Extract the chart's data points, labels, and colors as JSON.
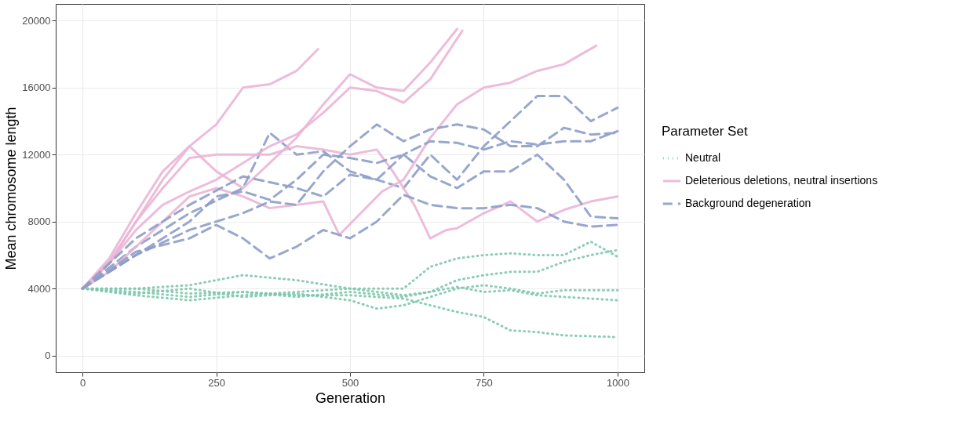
{
  "chart_data": {
    "type": "line",
    "xlabel": "Generation",
    "ylabel": "Mean chromosome length",
    "legend_title": "Parameter Set",
    "legend": "right",
    "grid": true,
    "marker": "none",
    "xlim": [
      -50,
      1050
    ],
    "xticks": [
      0,
      250,
      500,
      750,
      {
        "value": 1000,
        "label": "1000"
      }
    ],
    "ylim": [
      -1000,
      21000
    ],
    "yticks": [
      0,
      {
        "value": 4000,
        "label": "4000"
      },
      {
        "value": 8000,
        "label": "8000"
      },
      {
        "value": 12000,
        "label": "12000"
      },
      {
        "value": 16000,
        "label": "16000"
      },
      {
        "value": 20000,
        "label": "20000"
      }
    ],
    "series": [
      {
        "name": "Neutral",
        "color": "#80c8ad",
        "line_style": "dotted",
        "x": [
          0,
          100,
          200,
          300,
          400,
          500,
          600,
          700,
          750,
          800,
          850,
          900,
          1000
        ],
        "values": [
          4000,
          4000,
          3700,
          3800,
          3600,
          3600,
          3400,
          2600,
          2300,
          1500,
          1400,
          1200,
          1100
        ]
      },
      {
        "color": "#80c8ad",
        "line_style": "dotted",
        "x": [
          0,
          100,
          200,
          300,
          400,
          500,
          600,
          650,
          700,
          750,
          800,
          850,
          900,
          950,
          1000
        ],
        "values": [
          4000,
          3600,
          3300,
          3600,
          3800,
          4000,
          4000,
          5300,
          5800,
          6000,
          6100,
          6000,
          6000,
          6800,
          5900
        ]
      },
      {
        "color": "#80c8ad",
        "line_style": "dotted",
        "x": [
          0,
          100,
          200,
          300,
          400,
          500,
          600,
          650,
          700,
          750,
          800,
          850,
          900,
          950,
          1000
        ],
        "values": [
          4000,
          4000,
          4200,
          4800,
          4500,
          4000,
          3600,
          3800,
          4500,
          4800,
          5000,
          5000,
          5600,
          6000,
          6300
        ]
      },
      {
        "color": "#80c8ad",
        "line_style": "dotted",
        "x": [
          0,
          100,
          200,
          300,
          400,
          500,
          600,
          700,
          750,
          800,
          850,
          900,
          1000
        ],
        "values": [
          4000,
          3800,
          3500,
          3800,
          3500,
          3800,
          3500,
          4100,
          3800,
          3900,
          3600,
          3500,
          3300
        ]
      },
      {
        "color": "#80c8ad",
        "line_style": "dotted",
        "x": [
          0,
          100,
          200,
          300,
          400,
          500,
          550,
          600,
          700,
          750,
          800,
          850,
          900,
          1000
        ],
        "values": [
          4000,
          3700,
          4000,
          3500,
          3700,
          3300,
          2800,
          3000,
          4000,
          4200,
          4000,
          3700,
          3900,
          3900
        ]
      },
      {
        "name": "Deleterious deletions, neutral insertions",
        "color": "#ebb5d6",
        "line_style": "solid",
        "x": [
          0,
          50,
          100,
          150,
          200,
          250,
          300,
          350,
          400,
          440
        ],
        "values": [
          4000,
          5500,
          8000,
          10500,
          12500,
          13800,
          16000,
          16200,
          17000,
          18300
        ]
      },
      {
        "color": "#ebb5d6",
        "line_style": "solid",
        "x": [
          0,
          50,
          100,
          150,
          200,
          250,
          300,
          350,
          400,
          450,
          500,
          550,
          600,
          650,
          700
        ],
        "values": [
          4000,
          5800,
          8500,
          11000,
          12500,
          11000,
          10000,
          11500,
          13000,
          15000,
          16800,
          16000,
          15800,
          17500,
          19500
        ]
      },
      {
        "color": "#ebb5d6",
        "line_style": "solid",
        "x": [
          0,
          50,
          100,
          150,
          200,
          250,
          300,
          350,
          400,
          450,
          500,
          550,
          600,
          650,
          710
        ],
        "values": [
          4000,
          5500,
          7500,
          9000,
          9800,
          10500,
          11500,
          12500,
          13200,
          14500,
          16000,
          15800,
          15100,
          16500,
          19400
        ]
      },
      {
        "color": "#ebb5d6",
        "line_style": "solid",
        "x": [
          0,
          50,
          100,
          150,
          200,
          250,
          300,
          350,
          400,
          450,
          480,
          520,
          560,
          600,
          650,
          700,
          750,
          800,
          850,
          900,
          960
        ],
        "values": [
          4000,
          5000,
          6500,
          8000,
          9500,
          10000,
          9500,
          8800,
          9000,
          9200,
          7200,
          8500,
          9800,
          10500,
          13000,
          15000,
          16000,
          16300,
          17000,
          17400,
          18500
        ]
      },
      {
        "color": "#ebb5d6",
        "line_style": "solid",
        "x": [
          0,
          50,
          100,
          150,
          200,
          250,
          300,
          350,
          400,
          450,
          500,
          550,
          580,
          600,
          620,
          650,
          680,
          700,
          750,
          800,
          850,
          900,
          950,
          1000
        ],
        "values": [
          4000,
          5600,
          8000,
          10000,
          11800,
          12000,
          12000,
          12000,
          12500,
          12300,
          12000,
          12300,
          11000,
          10000,
          9000,
          7000,
          7500,
          7600,
          8500,
          9200,
          8000,
          8700,
          9200,
          9500
        ]
      },
      {
        "name": "Background degeneration",
        "color": "#8d9dc8",
        "line_style": "dashed",
        "x": [
          0,
          100,
          200,
          300,
          350,
          400,
          450,
          500,
          550,
          600,
          650,
          700,
          750,
          800,
          850,
          900,
          950,
          1000
        ],
        "values": [
          4000,
          6500,
          8500,
          10000,
          13300,
          12000,
          12200,
          11000,
          10500,
          10000,
          12000,
          10500,
          12500,
          14000,
          15500,
          15500,
          14000,
          14800
        ]
      },
      {
        "color": "#8d9dc8",
        "line_style": "dashed",
        "x": [
          0,
          100,
          200,
          300,
          350,
          400,
          450,
          500,
          550,
          600,
          650,
          700,
          750,
          800,
          850,
          900,
          950,
          1000
        ],
        "values": [
          4000,
          6000,
          7500,
          8500,
          9200,
          9000,
          11000,
          12500,
          13800,
          12800,
          13500,
          13800,
          13500,
          12500,
          12500,
          13600,
          13200,
          13300
        ]
      },
      {
        "color": "#8d9dc8",
        "line_style": "dashed",
        "x": [
          0,
          100,
          200,
          300,
          400,
          450,
          500,
          550,
          600,
          650,
          700,
          750,
          800,
          850,
          900,
          950,
          1000
        ],
        "values": [
          4000,
          7000,
          9000,
          10700,
          10000,
          9500,
          10800,
          10500,
          12000,
          12800,
          12700,
          12300,
          12800,
          12600,
          12800,
          12800,
          13400
        ]
      },
      {
        "color": "#8d9dc8",
        "line_style": "dashed",
        "x": [
          0,
          100,
          200,
          250,
          300,
          350,
          400,
          450,
          500,
          550,
          600,
          650,
          700,
          750,
          800,
          850,
          900,
          950,
          1000
        ],
        "values": [
          4000,
          6200,
          7000,
          7800,
          7000,
          5800,
          6500,
          7500,
          7000,
          8000,
          9600,
          9000,
          8800,
          8800,
          9000,
          8800,
          8000,
          7700,
          7800
        ]
      },
      {
        "color": "#8d9dc8",
        "line_style": "dashed",
        "x": [
          0,
          100,
          200,
          250,
          300,
          350,
          400,
          450,
          500,
          550,
          600,
          650,
          700,
          750,
          800,
          850,
          900,
          950,
          1000
        ],
        "values": [
          4000,
          6000,
          8000,
          9500,
          9800,
          9300,
          10500,
          12000,
          11800,
          11500,
          12000,
          10700,
          10000,
          11000,
          11000,
          12000,
          10500,
          8300,
          8200
        ]
      }
    ]
  }
}
